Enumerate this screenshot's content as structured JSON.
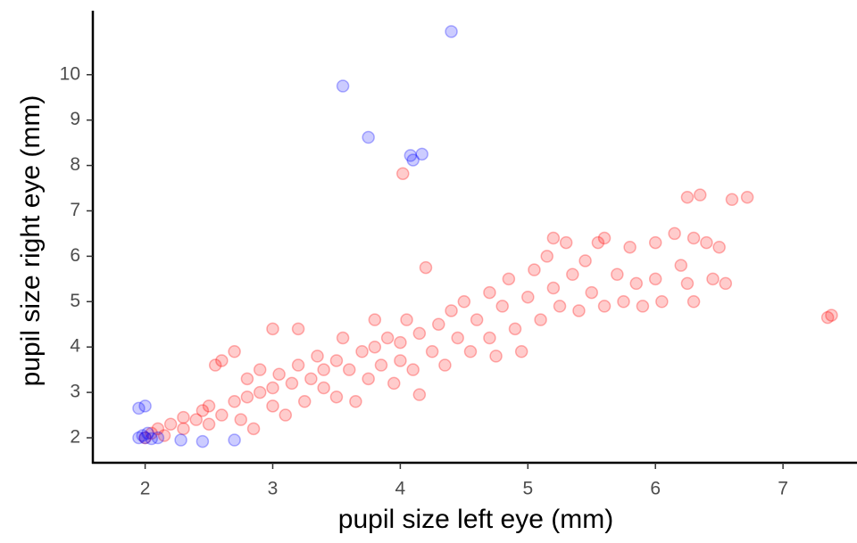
{
  "chart_data": {
    "type": "scatter",
    "x_label": "pupil size left eye (mm)",
    "y_label": "pupil size right eye (mm)",
    "xlim": [
      1.59,
      7.58
    ],
    "ylim": [
      1.45,
      11.41
    ],
    "xticks": [
      2,
      3,
      4,
      5,
      6,
      7
    ],
    "yticks": [
      2,
      3,
      4,
      5,
      6,
      7,
      8,
      9,
      10
    ],
    "grid": false,
    "series": [
      {
        "color": "#ff0000",
        "x": [
          2.0,
          2.05,
          2.1,
          2.15,
          2.2,
          2.3,
          2.3,
          2.4,
          2.45,
          2.5,
          2.5,
          2.55,
          2.6,
          2.6,
          2.7,
          2.7,
          2.75,
          2.8,
          2.8,
          2.85,
          2.9,
          2.9,
          3.0,
          3.0,
          3.0,
          3.05,
          3.1,
          3.15,
          3.2,
          3.2,
          3.25,
          3.3,
          3.35,
          3.4,
          3.4,
          3.5,
          3.5,
          3.55,
          3.6,
          3.65,
          3.7,
          3.75,
          3.8,
          3.8,
          3.85,
          3.9,
          3.95,
          4.0,
          4.0,
          4.02,
          4.05,
          4.1,
          4.15,
          4.15,
          4.2,
          4.25,
          4.3,
          4.35,
          4.4,
          4.45,
          4.5,
          4.55,
          4.6,
          4.7,
          4.7,
          4.75,
          4.8,
          4.85,
          4.9,
          4.95,
          5.0,
          5.05,
          5.1,
          5.15,
          5.2,
          5.2,
          5.25,
          5.3,
          5.35,
          5.4,
          5.45,
          5.5,
          5.55,
          5.6,
          5.6,
          5.7,
          5.75,
          5.8,
          5.85,
          5.9,
          6.0,
          6.0,
          6.05,
          6.15,
          6.2,
          6.25,
          6.25,
          6.3,
          6.35,
          6.4,
          6.45,
          6.55,
          6.6,
          6.72,
          7.35,
          7.38,
          6.3,
          6.5
        ],
        "values": [
          2.0,
          2.1,
          2.2,
          2.05,
          2.3,
          2.2,
          2.45,
          2.4,
          2.6,
          2.3,
          2.7,
          3.6,
          3.7,
          2.5,
          2.8,
          3.9,
          2.4,
          2.9,
          3.3,
          2.2,
          3.0,
          3.5,
          3.1,
          2.7,
          4.4,
          3.4,
          2.5,
          3.2,
          3.6,
          4.4,
          2.8,
          3.3,
          3.8,
          3.1,
          3.5,
          3.7,
          2.9,
          4.2,
          3.5,
          2.8,
          3.9,
          3.3,
          4.0,
          4.6,
          3.6,
          4.2,
          3.2,
          4.1,
          3.7,
          7.82,
          4.6,
          3.5,
          4.3,
          2.95,
          5.75,
          3.9,
          4.5,
          3.6,
          4.8,
          4.2,
          5.0,
          3.9,
          4.6,
          5.2,
          4.2,
          3.8,
          4.9,
          5.5,
          4.4,
          3.9,
          5.1,
          5.7,
          4.6,
          6.0,
          5.3,
          6.4,
          4.9,
          6.3,
          5.6,
          4.8,
          5.9,
          5.2,
          6.3,
          4.9,
          6.4,
          5.6,
          5.0,
          6.2,
          5.4,
          4.9,
          6.3,
          5.5,
          5.0,
          6.5,
          5.8,
          5.4,
          7.3,
          6.4,
          7.35,
          6.3,
          5.5,
          5.4,
          7.25,
          7.3,
          4.65,
          4.7,
          5.0,
          6.2
        ]
      },
      {
        "color": "#0000ff",
        "x": [
          1.95,
          1.98,
          2.0,
          2.02,
          2.05,
          1.95,
          2.0,
          2.1,
          2.28,
          2.45,
          2.7,
          3.55,
          3.75,
          4.08,
          4.1,
          4.17,
          4.4
        ],
        "values": [
          2.0,
          2.05,
          2.0,
          2.1,
          1.98,
          2.65,
          2.7,
          2.0,
          1.95,
          1.92,
          1.95,
          9.75,
          8.62,
          8.22,
          8.12,
          8.25,
          10.95
        ]
      }
    ]
  }
}
